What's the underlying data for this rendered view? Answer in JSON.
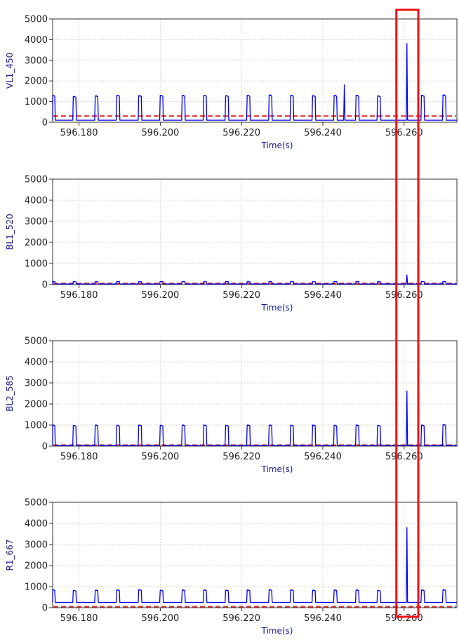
{
  "chart_data": [
    {
      "type": "line",
      "ylabel": "VL1_450",
      "xlabel": "Time(s)",
      "xlim": [
        596.1735,
        596.273
      ],
      "ylim": [
        0,
        5000
      ],
      "x_ticks": [
        "596.180",
        "596.200",
        "596.220",
        "596.240",
        "596.260"
      ],
      "x_tick_values": [
        596.18,
        596.2,
        596.22,
        596.24,
        596.26
      ],
      "y_ticks": [
        "0",
        "1000",
        "2000",
        "3000",
        "4000",
        "5000"
      ],
      "y_tick_values": [
        0,
        1000,
        2000,
        3000,
        4000,
        5000
      ],
      "grid": true,
      "series": [
        {
          "color": "#0000ee",
          "baseline": 100,
          "pulses": [
            {
              "x": 596.1737,
              "peak": 1300
            },
            {
              "x": 596.1789,
              "peak": 1250
            },
            {
              "x": 596.1843,
              "peak": 1280
            },
            {
              "x": 596.1896,
              "peak": 1300
            },
            {
              "x": 596.195,
              "peak": 1290
            },
            {
              "x": 596.2003,
              "peak": 1300
            },
            {
              "x": 596.2057,
              "peak": 1300
            },
            {
              "x": 596.211,
              "peak": 1300
            },
            {
              "x": 596.2164,
              "peak": 1290
            },
            {
              "x": 596.2217,
              "peak": 1300
            },
            {
              "x": 596.2271,
              "peak": 1320
            },
            {
              "x": 596.2324,
              "peak": 1300
            },
            {
              "x": 596.2378,
              "peak": 1290
            },
            {
              "x": 596.2431,
              "peak": 1300
            },
            {
              "x": 596.2485,
              "peak": 1300
            },
            {
              "x": 596.2538,
              "peak": 1280
            },
            {
              "x": 596.2646,
              "peak": 1300
            },
            {
              "x": 596.2699,
              "peak": 1320
            }
          ],
          "spikes": [
            {
              "x": 596.2453,
              "peak": 1800
            },
            {
              "x": 596.2607,
              "peak": 3800
            }
          ]
        }
      ],
      "threshold": {
        "value": 300,
        "color": "#e53030",
        "style": "dashed"
      }
    },
    {
      "type": "line",
      "ylabel": "BL1_520",
      "xlabel": "Time(s)",
      "xlim": [
        596.1735,
        596.273
      ],
      "ylim": [
        0,
        5000
      ],
      "x_ticks": [
        "596.180",
        "596.200",
        "596.220",
        "596.240",
        "596.260"
      ],
      "x_tick_values": [
        596.18,
        596.2,
        596.22,
        596.24,
        596.26
      ],
      "y_ticks": [
        "0",
        "1000",
        "2000",
        "3000",
        "4000",
        "5000"
      ],
      "y_tick_values": [
        0,
        1000,
        2000,
        3000,
        4000,
        5000
      ],
      "grid": true,
      "series": [
        {
          "color": "#0000ee",
          "baseline": 30,
          "pulses": [
            {
              "x": 596.1737,
              "peak": 150
            },
            {
              "x": 596.1789,
              "peak": 140
            },
            {
              "x": 596.1843,
              "peak": 140
            },
            {
              "x": 596.1896,
              "peak": 150
            },
            {
              "x": 596.195,
              "peak": 140
            },
            {
              "x": 596.2003,
              "peak": 150
            },
            {
              "x": 596.2057,
              "peak": 150
            },
            {
              "x": 596.211,
              "peak": 140
            },
            {
              "x": 596.2164,
              "peak": 150
            },
            {
              "x": 596.2217,
              "peak": 140
            },
            {
              "x": 596.2271,
              "peak": 150
            },
            {
              "x": 596.2324,
              "peak": 150
            },
            {
              "x": 596.2378,
              "peak": 140
            },
            {
              "x": 596.2431,
              "peak": 150
            },
            {
              "x": 596.2485,
              "peak": 150
            },
            {
              "x": 596.2538,
              "peak": 140
            },
            {
              "x": 596.2646,
              "peak": 150
            },
            {
              "x": 596.2699,
              "peak": 150
            }
          ],
          "spikes": [
            {
              "x": 596.2607,
              "peak": 450
            }
          ]
        }
      ],
      "threshold": {
        "value": 50,
        "color": "#e53030",
        "style": "dashed"
      }
    },
    {
      "type": "line",
      "ylabel": "BL2_585",
      "xlabel": "Time(s)",
      "xlim": [
        596.1735,
        596.273
      ],
      "ylim": [
        0,
        5000
      ],
      "x_ticks": [
        "596.180",
        "596.200",
        "596.220",
        "596.240",
        "596.260"
      ],
      "x_tick_values": [
        596.18,
        596.2,
        596.22,
        596.24,
        596.26
      ],
      "y_ticks": [
        "0",
        "1000",
        "2000",
        "3000",
        "4000",
        "5000"
      ],
      "y_tick_values": [
        0,
        1000,
        2000,
        3000,
        4000,
        5000
      ],
      "grid": true,
      "series": [
        {
          "color": "#0000ee",
          "baseline": 30,
          "pulses": [
            {
              "x": 596.1737,
              "peak": 1000
            },
            {
              "x": 596.1789,
              "peak": 980
            },
            {
              "x": 596.1843,
              "peak": 1000
            },
            {
              "x": 596.1896,
              "peak": 990
            },
            {
              "x": 596.195,
              "peak": 1000
            },
            {
              "x": 596.2003,
              "peak": 990
            },
            {
              "x": 596.2057,
              "peak": 1000
            },
            {
              "x": 596.211,
              "peak": 1000
            },
            {
              "x": 596.2164,
              "peak": 990
            },
            {
              "x": 596.2217,
              "peak": 1000
            },
            {
              "x": 596.2271,
              "peak": 1000
            },
            {
              "x": 596.2324,
              "peak": 990
            },
            {
              "x": 596.2378,
              "peak": 1000
            },
            {
              "x": 596.2431,
              "peak": 990
            },
            {
              "x": 596.2485,
              "peak": 1000
            },
            {
              "x": 596.2538,
              "peak": 980
            },
            {
              "x": 596.2646,
              "peak": 1000
            },
            {
              "x": 596.2699,
              "peak": 1020
            }
          ],
          "spikes": [
            {
              "x": 596.2607,
              "peak": 2600
            }
          ]
        }
      ],
      "threshold": {
        "value": 50,
        "color": "#e53030",
        "style": "dashed"
      }
    },
    {
      "type": "line",
      "ylabel": "R1_667",
      "xlabel": "Time(s)",
      "xlim": [
        596.1735,
        596.273
      ],
      "ylim": [
        0,
        5000
      ],
      "x_ticks": [
        "596.180",
        "596.200",
        "596.220",
        "596.240",
        "596.260"
      ],
      "x_tick_values": [
        596.18,
        596.2,
        596.22,
        596.24,
        596.26
      ],
      "y_ticks": [
        "0",
        "1000",
        "2000",
        "3000",
        "4000",
        "5000"
      ],
      "y_tick_values": [
        0,
        1000,
        2000,
        3000,
        4000,
        5000
      ],
      "grid": true,
      "series": [
        {
          "color": "#0000ee",
          "baseline": 250,
          "pulses": [
            {
              "x": 596.1737,
              "peak": 850
            },
            {
              "x": 596.1789,
              "peak": 820
            },
            {
              "x": 596.1843,
              "peak": 830
            },
            {
              "x": 596.1896,
              "peak": 840
            },
            {
              "x": 596.195,
              "peak": 850
            },
            {
              "x": 596.2003,
              "peak": 830
            },
            {
              "x": 596.2057,
              "peak": 840
            },
            {
              "x": 596.211,
              "peak": 840
            },
            {
              "x": 596.2164,
              "peak": 830
            },
            {
              "x": 596.2217,
              "peak": 840
            },
            {
              "x": 596.2271,
              "peak": 850
            },
            {
              "x": 596.2324,
              "peak": 840
            },
            {
              "x": 596.2378,
              "peak": 830
            },
            {
              "x": 596.2431,
              "peak": 840
            },
            {
              "x": 596.2485,
              "peak": 840
            },
            {
              "x": 596.2538,
              "peak": 820
            },
            {
              "x": 596.2646,
              "peak": 840
            },
            {
              "x": 596.2699,
              "peak": 850
            }
          ],
          "spikes": [
            {
              "x": 596.2607,
              "peak": 3800
            }
          ]
        }
      ],
      "threshold": {
        "value": 50,
        "color": "#e53030",
        "style": "dashed"
      }
    }
  ],
  "highlight": {
    "x_range": [
      596.2581,
      596.2635
    ],
    "color": "#ee1111"
  },
  "colors": {
    "series": "#0000ee",
    "axis_label": "#1a1a8c",
    "grid": "#d6d6d6",
    "threshold": "#e53030",
    "highlight": "#ee1111"
  }
}
